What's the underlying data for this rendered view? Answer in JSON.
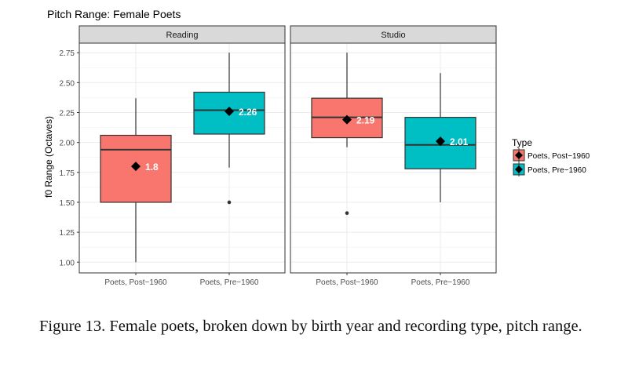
{
  "chart_data": {
    "type": "boxplot",
    "title": "Pitch Range: Female Poets",
    "ylabel": "f0 Range (Octaves)",
    "xlabel": "",
    "ylim": [
      0.91,
      2.83
    ],
    "yticks": [
      "1.00",
      "1.25",
      "1.50",
      "1.75",
      "2.00",
      "2.25",
      "2.50",
      "2.75"
    ],
    "ytick_values": [
      1.0,
      1.25,
      1.5,
      1.75,
      2.0,
      2.25,
      2.5,
      2.75
    ],
    "grid": true,
    "categories": [
      "Poets, Post−1960",
      "Poets, Pre−1960"
    ],
    "legend": {
      "title": "Type",
      "placement": "right",
      "entries": [
        "Poets, Post−1960",
        "Poets, Pre−1960"
      ]
    },
    "colors": [
      "#F8766D",
      "#00BFC4"
    ],
    "panels": [
      {
        "name": "Reading",
        "boxes": [
          {
            "category": "Poets, Post−1960",
            "whisker_low": 1.0,
            "q1": 1.5,
            "median": 1.94,
            "q3": 2.06,
            "whisker_high": 2.37,
            "mean": 1.8,
            "mean_label": "1.8",
            "outliers": []
          },
          {
            "category": "Poets, Pre−1960",
            "whisker_low": 1.79,
            "q1": 2.07,
            "median": 2.27,
            "q3": 2.42,
            "whisker_high": 2.75,
            "mean": 2.26,
            "mean_label": "2.26",
            "outliers": [
              1.5
            ]
          }
        ]
      },
      {
        "name": "Studio",
        "boxes": [
          {
            "category": "Poets, Post−1960",
            "whisker_low": 1.96,
            "q1": 2.04,
            "median": 2.21,
            "q3": 2.37,
            "whisker_high": 2.75,
            "mean": 2.19,
            "mean_label": "2.19",
            "outliers": [
              1.41
            ]
          },
          {
            "category": "Poets, Pre−1960",
            "whisker_low": 1.5,
            "q1": 1.78,
            "median": 1.98,
            "q3": 2.21,
            "whisker_high": 2.58,
            "mean": 2.01,
            "mean_label": "2.01",
            "outliers": []
          }
        ]
      }
    ]
  },
  "caption": "Figure 13.  Female poets, broken down by birth year and recording type, pitch range."
}
